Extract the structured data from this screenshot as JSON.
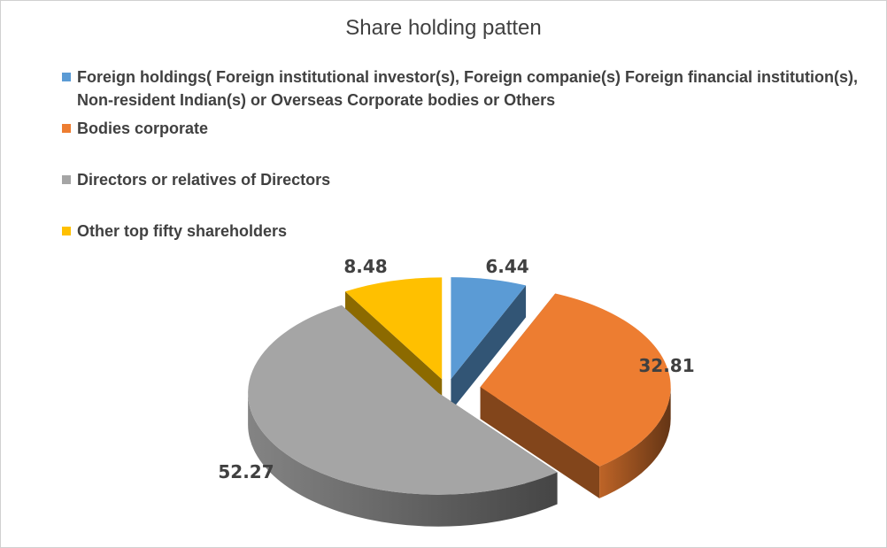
{
  "chart_data": {
    "type": "pie",
    "title": "Share holding patten",
    "legend_position": "top",
    "categories": [
      "Foreign holdings( Foreign institutional investor(s), Foreign companie(s) Foreign financial institution(s), Non-resident Indian(s) or Overseas Corporate bodies or Others",
      "Bodies corporate",
      "Directors or relatives of Directors",
      "Other top fifty shareholders"
    ],
    "values": [
      6.44,
      32.81,
      52.27,
      8.48
    ],
    "data_labels": [
      "6.44",
      "32.81",
      "52.27",
      "8.48"
    ],
    "colors": [
      "#5b9bd5",
      "#ed7d31",
      "#a5a5a5",
      "#ffc000"
    ],
    "style": "exploded-3d"
  }
}
